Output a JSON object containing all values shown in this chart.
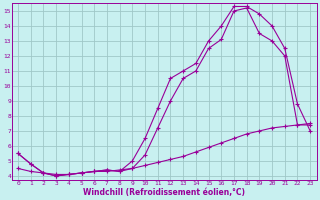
{
  "xlabel": "Windchill (Refroidissement éolien,°C)",
  "ylabel": "",
  "bg_color": "#c8f0f0",
  "grid_color": "#a0c8c8",
  "line_color": "#990099",
  "xlim": [
    -0.5,
    23.5
  ],
  "ylim": [
    3.7,
    15.5
  ],
  "xticks": [
    0,
    1,
    2,
    3,
    4,
    5,
    6,
    7,
    8,
    9,
    10,
    11,
    12,
    13,
    14,
    15,
    16,
    17,
    18,
    19,
    20,
    21,
    22,
    23
  ],
  "yticks": [
    4,
    5,
    6,
    7,
    8,
    9,
    10,
    11,
    12,
    13,
    14,
    15
  ],
  "line1_x": [
    0,
    1,
    2,
    3,
    4,
    5,
    6,
    7,
    8,
    9,
    10,
    11,
    12,
    13,
    14,
    15,
    16,
    17,
    18,
    19,
    20,
    21,
    22,
    23
  ],
  "line1_y": [
    5.5,
    4.8,
    4.2,
    4.0,
    4.1,
    4.2,
    4.3,
    4.4,
    4.3,
    4.5,
    5.4,
    7.2,
    9.0,
    10.5,
    11.0,
    12.5,
    13.1,
    15.0,
    15.2,
    13.5,
    13.0,
    12.0,
    7.4,
    7.4
  ],
  "line2_x": [
    0,
    1,
    2,
    3,
    4,
    5,
    6,
    7,
    8,
    9,
    10,
    11,
    12,
    13,
    14,
    15,
    16,
    17,
    18,
    19,
    20,
    21,
    22,
    23
  ],
  "line2_y": [
    5.5,
    4.8,
    4.2,
    4.0,
    4.1,
    4.2,
    4.3,
    4.4,
    4.3,
    5.0,
    6.5,
    8.5,
    10.5,
    11.0,
    11.5,
    13.0,
    14.0,
    15.3,
    15.3,
    14.8,
    14.0,
    12.5,
    8.8,
    7.0
  ],
  "line3_x": [
    0,
    1,
    2,
    3,
    4,
    5,
    6,
    7,
    8,
    9,
    10,
    11,
    12,
    13,
    14,
    15,
    16,
    17,
    18,
    19,
    20,
    21,
    22,
    23
  ],
  "line3_y": [
    4.5,
    4.3,
    4.2,
    4.1,
    4.1,
    4.2,
    4.3,
    4.3,
    4.4,
    4.5,
    4.7,
    4.9,
    5.1,
    5.3,
    5.6,
    5.9,
    6.2,
    6.5,
    6.8,
    7.0,
    7.2,
    7.3,
    7.4,
    7.5
  ]
}
